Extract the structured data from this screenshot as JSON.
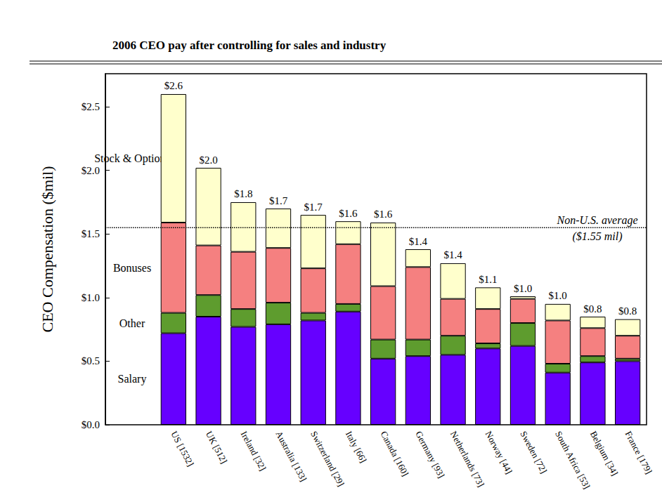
{
  "chart_data": {
    "type": "bar",
    "title": "2006 CEO pay after controlling for sales and industry",
    "ylabel": "CEO Compensation ($mil)",
    "categories": [
      "US [1532]",
      "UK [512]",
      "Ireland [32]",
      "Australia [133]",
      "Switzerland [29]",
      "Italy [66]",
      "Canada [160]",
      "Germany [93]",
      "Netherlands [73]",
      "Norway [44]",
      "Sweden [72]",
      "South Africa [53]",
      "Belgium [34]",
      "France [179]"
    ],
    "series": [
      {
        "name": "Salary",
        "color": "#6600ff",
        "values": [
          0.72,
          0.85,
          0.77,
          0.79,
          0.82,
          0.89,
          0.52,
          0.54,
          0.55,
          0.6,
          0.62,
          0.41,
          0.49,
          0.5
        ]
      },
      {
        "name": "Other",
        "color": "#5e9c2e",
        "values": [
          0.16,
          0.17,
          0.14,
          0.17,
          0.06,
          0.06,
          0.15,
          0.13,
          0.15,
          0.04,
          0.18,
          0.07,
          0.05,
          0.02
        ]
      },
      {
        "name": "Bonuses",
        "color": "#f58080",
        "values": [
          0.71,
          0.39,
          0.45,
          0.43,
          0.35,
          0.47,
          0.42,
          0.57,
          0.29,
          0.27,
          0.19,
          0.34,
          0.22,
          0.18
        ]
      },
      {
        "name": "Stock & Options",
        "color": "#ffffcc",
        "values": [
          1.01,
          0.61,
          0.39,
          0.31,
          0.42,
          0.18,
          0.5,
          0.14,
          0.28,
          0.17,
          0.02,
          0.13,
          0.09,
          0.13
        ]
      }
    ],
    "total_labels": [
      "$2.6",
      "$2.0",
      "$1.8",
      "$1.7",
      "$1.7",
      "$1.6",
      "$1.6",
      "$1.4",
      "$1.4",
      "$1.1",
      "$1.0",
      "$1.0",
      "$0.8",
      "$0.8"
    ],
    "stacked": true,
    "ylim": [
      0,
      2.76
    ],
    "yticks": [
      {
        "value": 0,
        "label": "$0.0"
      },
      {
        "value": 0.5,
        "label": "$0.5"
      },
      {
        "value": 1,
        "label": "$1.0"
      },
      {
        "value": 1.5,
        "label": "$1.5"
      },
      {
        "value": 2,
        "label": "$2.0"
      },
      {
        "value": 2.5,
        "label": "$2.5"
      }
    ],
    "grid": false,
    "reference_line": {
      "value": 1.55,
      "label": [
        "Non-U.S. average",
        "($1.55 mil)"
      ]
    }
  }
}
